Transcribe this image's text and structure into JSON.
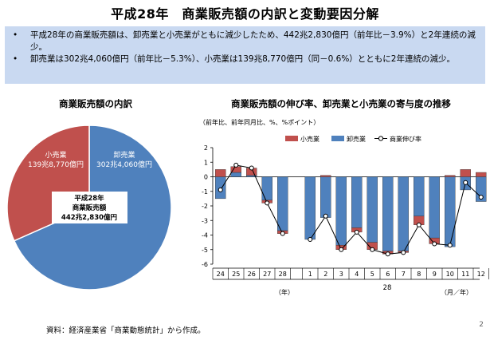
{
  "header": {
    "title": "平成28年　商業販売額の内訳と変動要因分解"
  },
  "summary": {
    "bullets": [
      {
        "marker": "•",
        "text": "平成28年の商業販売額は、卸売業と小売業がともに減少したため、442兆2,830億円（前年比－3.9%）と2年連続の減少。"
      },
      {
        "marker": "•",
        "text": "卸売業は302兆4,060億円（前年比－5.3%）、小売業は139兆8,770億円（同－0.6%）とともに2年連続の減少。"
      }
    ]
  },
  "pie_section": {
    "title": "商業販売額の内訳",
    "center_label": [
      "平成28年",
      "商業販売額",
      "442兆2,830億円"
    ],
    "slice_labels": [
      {
        "name": "小売業",
        "value": "139兆8,770億円"
      },
      {
        "name": "卸売業",
        "value": "302兆4,060億円"
      }
    ]
  },
  "line_section": {
    "title": "商業販売額の伸び率、卸売業と小売業の寄与度の推移",
    "unit_note": "（前年比、前年同月比、%、%ポイント）",
    "year_axis_label": "（年）",
    "month_axis_label": "（月／年）",
    "year_group_label": "28"
  },
  "chart_data": [
    {
      "type": "pie",
      "title": "商業販売額の内訳",
      "slices": [
        {
          "name": "卸売業",
          "label": "302兆4,060億円",
          "value": 302.406,
          "color": "#4f81bd"
        },
        {
          "name": "小売業",
          "label": "139兆8,770億円",
          "value": 139.877,
          "color": "#c0504d"
        }
      ],
      "total_label": "442兆2,830億円"
    },
    {
      "type": "bar",
      "title": "商業販売額の伸び率、卸売業と小売業の寄与度の推移",
      "stacked": true,
      "categories": [
        "24",
        "25",
        "26",
        "27",
        "28",
        "1",
        "2",
        "3",
        "4",
        "5",
        "6",
        "7",
        "8",
        "9",
        "10",
        "11",
        "12"
      ],
      "ylim": [
        -6,
        2
      ],
      "yticks": [
        2,
        1,
        0,
        -1,
        -2,
        -3,
        -4,
        -5,
        -6
      ],
      "grid": false,
      "legend": "top",
      "series": [
        {
          "name": "小売業",
          "kind": "bar",
          "color": "#c0504d",
          "values": [
            0.5,
            0.4,
            0.5,
            -0.2,
            -0.2,
            0.0,
            0.1,
            -0.3,
            -0.3,
            -0.5,
            -0.2,
            -0.1,
            -0.6,
            -0.4,
            0.1,
            0.5,
            0.3
          ]
        },
        {
          "name": "卸売業",
          "kind": "bar",
          "color": "#4f81bd",
          "values": [
            -1.5,
            0.3,
            0.1,
            -1.6,
            -3.7,
            -4.3,
            -2.8,
            -4.7,
            -3.5,
            -4.5,
            -5.1,
            -5.1,
            -2.7,
            -4.2,
            -4.8,
            -0.9,
            -1.7
          ]
        },
        {
          "name": "商業伸び率",
          "kind": "line",
          "color": "#000000",
          "values": [
            -0.9,
            0.8,
            0.6,
            -1.8,
            -3.9,
            -4.3,
            -2.7,
            -5.0,
            -3.8,
            -5.0,
            -5.3,
            -5.2,
            -3.3,
            -4.6,
            -4.7,
            -0.4,
            -1.4
          ]
        }
      ]
    }
  ]
}
